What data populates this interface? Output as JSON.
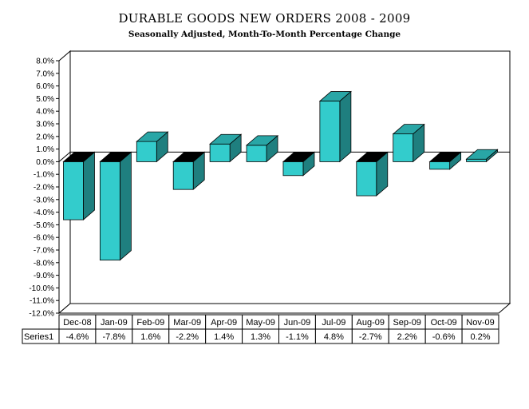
{
  "chart_data": {
    "type": "bar",
    "title": "DURABLE GOODS NEW ORDERS 2008 - 2009",
    "subtitle": "Seasonally Adjusted,  Month-To-Month Percentage Change",
    "xlabel": "",
    "ylabel": "",
    "categories": [
      "Dec-08",
      "Jan-09",
      "Feb-09",
      "Mar-09",
      "Apr-09",
      "May-09",
      "Jun-09",
      "Jul-09",
      "Aug-09",
      "Sep-09",
      "Oct-09",
      "Nov-09"
    ],
    "series": [
      {
        "name": "Series1",
        "values": [
          -4.6,
          -7.8,
          1.6,
          -2.2,
          1.4,
          1.3,
          -1.1,
          4.8,
          -2.7,
          2.2,
          -0.6,
          0.2
        ],
        "labels": [
          "-4.6%",
          "-7.8%",
          "1.6%",
          "-2.2%",
          "1.4%",
          "1.3%",
          "-1.1%",
          "4.8%",
          "-2.7%",
          "2.2%",
          "-0.6%",
          "0.2%"
        ]
      }
    ],
    "ylim": [
      -12,
      8
    ],
    "yticks": [
      8,
      7,
      6,
      5,
      4,
      3,
      2,
      1,
      0,
      -1,
      -2,
      -3,
      -4,
      -5,
      -6,
      -7,
      -8,
      -9,
      -10,
      -11,
      -12
    ],
    "ytick_labels": [
      "8.0%",
      "7.0%",
      "6.0%",
      "5.0%",
      "4.0%",
      "3.0%",
      "2.0%",
      "1.0%",
      "0.0%",
      "-1.0%",
      "-2.0%",
      "-3.0%",
      "-4.0%",
      "-5.0%",
      "-6.0%",
      "-7.0%",
      "-8.0%",
      "-9.0%",
      "-10.0%",
      "-11.0%",
      "-12.0%"
    ],
    "style": "3d-bar-with-data-table",
    "grid": false,
    "colors": {
      "bar_front": "#33cccc",
      "bar_side": "#1f7f7f",
      "bar_top": "#29a6a6",
      "bar_negative_top": "#000000"
    }
  }
}
